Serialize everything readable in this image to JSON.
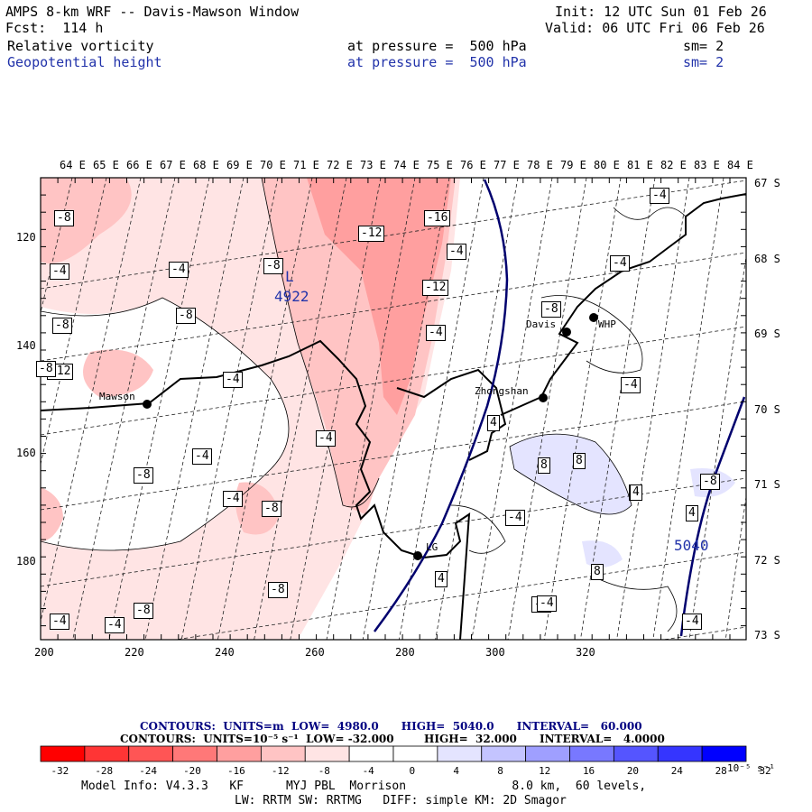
{
  "header": {
    "title": "AMPS 8-km WRF -- Davis-Mawson Window",
    "forecast": "Fcst:  114 h",
    "init": "Init: 12 UTC Sun 01 Feb 26",
    "valid": "Valid: 06 UTC Fri 06 Feb 26",
    "field1": {
      "name": "Relative vorticity",
      "level": "at pressure =  500 hPa",
      "sm": "sm= 2"
    },
    "field2": {
      "name": "Geopotential height",
      "level": "at pressure =  500 hPa",
      "sm": "sm= 2"
    }
  },
  "map": {
    "top_lon_labels": [
      "64 E",
      "65 E",
      "66 E",
      "67 E",
      "68 E",
      "69 E",
      "70 E",
      "71 E",
      "72 E",
      "73 E",
      "74 E",
      "75 E",
      "76 E",
      "77 E",
      "78 E",
      "79 E",
      "80 E",
      "81 E",
      "82 E",
      "83 E",
      "84 E"
    ],
    "right_lat_labels": [
      "67 S",
      "68 S",
      "69 S",
      "70 S",
      "71 S",
      "72 S",
      "73 S"
    ],
    "left_grid_labels": [
      "120",
      "140",
      "160",
      "180"
    ],
    "bottom_grid_labels": [
      "200",
      "220",
      "240",
      "260",
      "280",
      "300",
      "320"
    ],
    "stations": [
      "Mawson",
      "Davis",
      "WHP",
      "Zhongshan",
      "LG"
    ],
    "height_labels": [
      "L",
      "4922",
      "5040"
    ],
    "vorticity_labels": [
      "-8",
      "-16",
      "-4",
      "-12",
      "-8",
      "-4",
      "-8",
      "-8",
      "-12",
      "-4",
      "-4",
      "-12",
      "-4",
      "-4",
      "-8",
      "-4",
      "-4",
      "-4",
      "-8",
      "-4",
      "-8",
      "4",
      "-4",
      "8",
      "8",
      "-8",
      "-4",
      "-8",
      "4",
      "-4",
      "8",
      "-4",
      "-8",
      "8",
      "4",
      "-4",
      "-4",
      "-8",
      "-4",
      "4"
    ]
  },
  "legend": {
    "contours_height": "CONTOURS:  UNITS=m  LOW=  4980.0      HIGH=  5040.0      INTERVAL=   60.000",
    "contours_vort": "CONTOURS:  UNITS=10⁻⁵ s⁻¹  LOW= -32.000        HIGH=  32.000      INTERVAL=   4.0000",
    "ticks": [
      "-32",
      "-28",
      "-24",
      "-20",
      "-16",
      "-12",
      "-8",
      "-4",
      "0",
      "4",
      "8",
      "12",
      "16",
      "20",
      "24",
      "28",
      "32"
    ],
    "unit": "10⁻⁵ s⁻¹",
    "colors": [
      "#ff0000",
      "#ff3535",
      "#ff5555",
      "#ff7878",
      "#ff9f9f",
      "#ffc4c4",
      "#ffe4e4",
      "#ffffff",
      "#ffffff",
      "#e4e4ff",
      "#c4c4ff",
      "#9f9fff",
      "#7878ff",
      "#5555ff",
      "#3535ff",
      "#0000ff"
    ]
  },
  "footer": {
    "line1": "Model Info: V4.3.3   KF      MYJ PBL  Morrison               8.0 km,  60 levels,",
    "line2": "LW: RRTM SW: RRTMG   DIFF: simple KM: 2D Smagor"
  }
}
